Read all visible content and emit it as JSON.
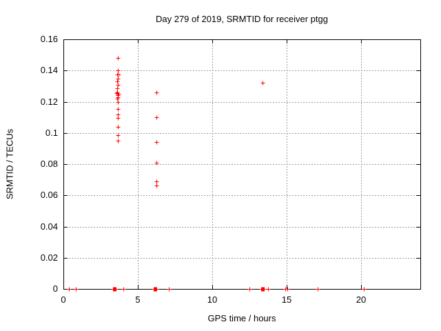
{
  "chart_data": {
    "type": "scatter",
    "title": "Day 279 of 2019, SRMTID for receiver ptgg",
    "xlabel": "GPS time / hours",
    "ylabel": "SRMTID / TECUs",
    "xlim": [
      0,
      24
    ],
    "ylim": [
      0,
      0.16
    ],
    "xticks": [
      0,
      5,
      10,
      15,
      20
    ],
    "xtick_labels": [
      "0",
      "5",
      "10",
      "15",
      "20"
    ],
    "yticks": [
      0,
      0.02,
      0.04,
      0.06,
      0.08,
      0.1,
      0.12,
      0.14,
      0.16
    ],
    "ytick_labels": [
      "0",
      "0.02",
      "0.04",
      "0.06",
      "0.08",
      "0.1",
      "0.12",
      "0.14",
      "0.16"
    ],
    "grid": true,
    "legend": "none",
    "marker": "plus",
    "colors": {
      "marker": "#ff0000",
      "grid": "#9b9b9b",
      "axis": "#000000",
      "text": "#000000",
      "background": "#ffffff"
    },
    "series": [
      {
        "name": "SRMTID",
        "points": [
          [
            3.64,
            0.148
          ],
          [
            3.66,
            0.14
          ],
          [
            3.6,
            0.1375
          ],
          [
            3.72,
            0.1375
          ],
          [
            3.64,
            0.135
          ],
          [
            3.61,
            0.133
          ],
          [
            3.64,
            0.131
          ],
          [
            3.62,
            0.1285
          ],
          [
            3.63,
            0.126
          ],
          [
            3.56,
            0.1255
          ],
          [
            3.7,
            0.125
          ],
          [
            3.64,
            0.124
          ],
          [
            3.66,
            0.123
          ],
          [
            3.62,
            0.122
          ],
          [
            3.64,
            0.12
          ],
          [
            3.64,
            0.1155
          ],
          [
            3.64,
            0.112
          ],
          [
            3.64,
            0.1095
          ],
          [
            3.64,
            0.104
          ],
          [
            3.68,
            0.0985
          ],
          [
            3.64,
            0.095
          ],
          [
            6.24,
            0.126
          ],
          [
            6.24,
            0.11
          ],
          [
            6.24,
            0.094
          ],
          [
            6.24,
            0.081
          ],
          [
            6.24,
            0.069
          ],
          [
            6.24,
            0.0665
          ],
          [
            13.38,
            0.132
          ],
          [
            0.37,
            0
          ],
          [
            0.83,
            0
          ],
          [
            3.33,
            0
          ],
          [
            3.38,
            0
          ],
          [
            3.43,
            0
          ],
          [
            3.48,
            0
          ],
          [
            3.53,
            0
          ],
          [
            4.03,
            0
          ],
          [
            6.05,
            0
          ],
          [
            6.1,
            0
          ],
          [
            6.15,
            0
          ],
          [
            6.2,
            0
          ],
          [
            6.25,
            0
          ],
          [
            7.08,
            0
          ],
          [
            12.5,
            0
          ],
          [
            13.28,
            0
          ],
          [
            13.33,
            0
          ],
          [
            13.38,
            0
          ],
          [
            13.43,
            0
          ],
          [
            13.48,
            0
          ],
          [
            13.75,
            0
          ],
          [
            14.9,
            0
          ],
          [
            15.05,
            0
          ],
          [
            17.08,
            0
          ],
          [
            20.2,
            0
          ]
        ]
      }
    ]
  }
}
